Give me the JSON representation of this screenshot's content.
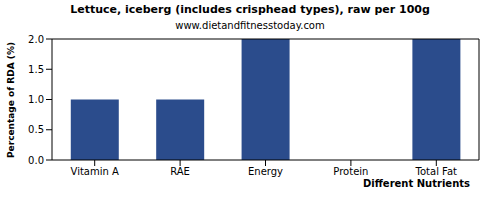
{
  "chart_data": {
    "type": "bar",
    "title": "Lettuce, iceberg (includes crisphead types), raw per 100g",
    "subtitle": "www.dietandfitnesstoday.com",
    "x_label": "Different Nutrients",
    "y_label": "Percentage of RDA (%)",
    "categories": [
      "Vitamin A",
      "RAE",
      "Energy",
      "Protein",
      "Total Fat"
    ],
    "values": [
      1,
      1,
      2,
      0,
      2
    ],
    "color": "#2b4c8c",
    "ylim": [
      0,
      2
    ],
    "yticks": [
      {
        "value": 0,
        "label": "0.0"
      },
      0.5,
      {
        "value": 1,
        "label": "1.0"
      },
      1.5,
      {
        "value": 2,
        "label": "2.0"
      }
    ],
    "grid": false
  }
}
